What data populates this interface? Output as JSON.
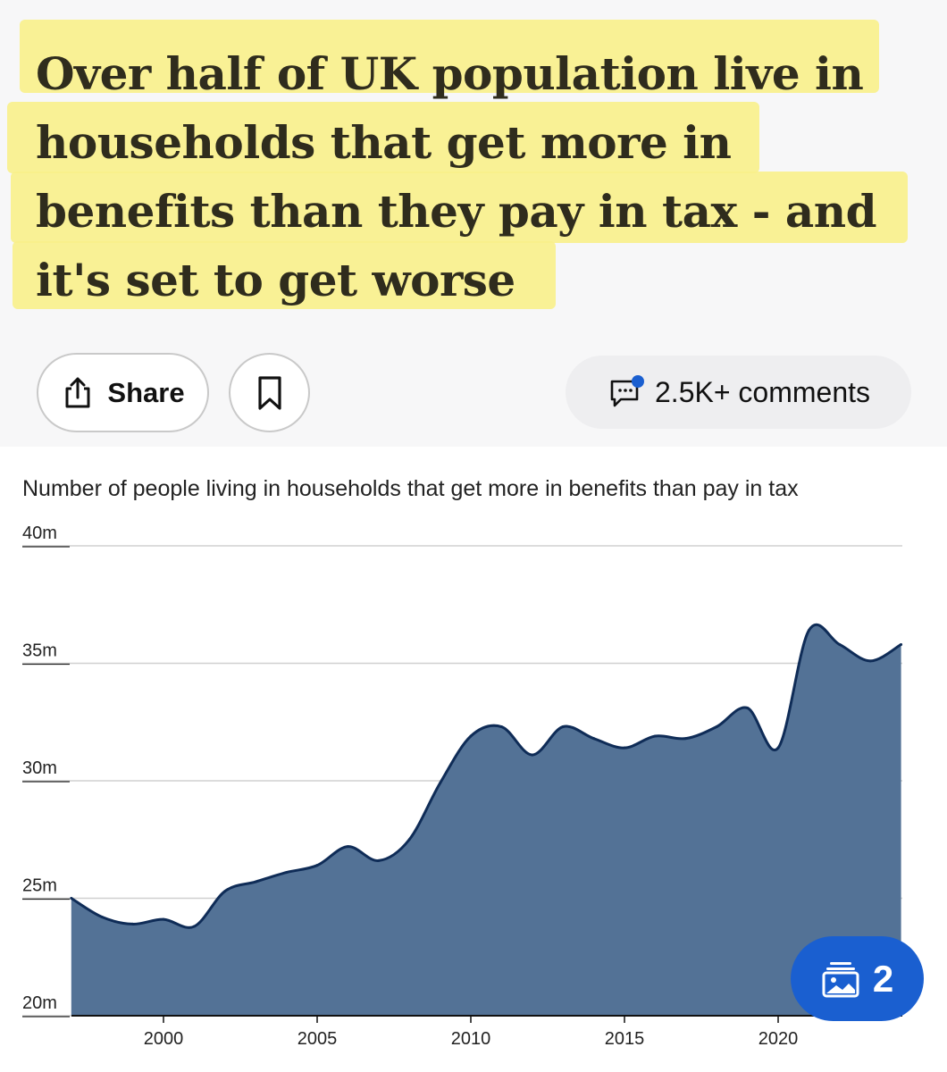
{
  "article": {
    "headline": "Over half of UK population live in households that get more in benefits than they pay in tax - and it's set to get worse"
  },
  "actions": {
    "share_label": "Share",
    "comments_label": "2.5K+ comments"
  },
  "gallery": {
    "count": "2"
  },
  "colors": {
    "highlight": "#f8f08a",
    "headline": "#2f2c1d",
    "area_fill": "#537296",
    "area_line": "#0f2c57",
    "accent": "#1a5fd0"
  },
  "icons": [
    "share-icon",
    "bookmark-icon",
    "comment-icon",
    "gallery-icon"
  ],
  "chart_data": {
    "type": "area",
    "title": "Number of people living in households that get more in benefits than pay in tax",
    "xlabel": "",
    "ylabel": "",
    "ylim": [
      20,
      40
    ],
    "xlim": [
      1997,
      2024
    ],
    "y_ticks": [
      {
        "value": 40,
        "label": "40m"
      },
      {
        "value": 35,
        "label": "35m"
      },
      {
        "value": 30,
        "label": "30m"
      },
      {
        "value": 25,
        "label": "25m"
      },
      {
        "value": 20,
        "label": "20m"
      }
    ],
    "x_ticks": [
      {
        "value": 2000,
        "label": "2000"
      },
      {
        "value": 2005,
        "label": "2005"
      },
      {
        "value": 2010,
        "label": "2010"
      },
      {
        "value": 2015,
        "label": "2015"
      },
      {
        "value": 2020,
        "label": "2020"
      }
    ],
    "grid": true,
    "series": [
      {
        "x": [
          1997,
          1998,
          1999,
          2000,
          2001,
          2002,
          2003,
          2004,
          2005,
          2006,
          2007,
          2008,
          2009,
          2010,
          2011,
          2012,
          2013,
          2014,
          2015,
          2016,
          2017,
          2018,
          2019,
          2020,
          2021,
          2022,
          2023,
          2024
        ],
        "values": [
          25.0,
          24.2,
          23.9,
          24.1,
          23.8,
          25.3,
          25.7,
          26.1,
          26.4,
          27.2,
          26.6,
          27.5,
          29.9,
          31.9,
          32.3,
          31.1,
          32.3,
          31.8,
          31.4,
          31.9,
          31.8,
          32.3,
          33.1,
          31.4,
          36.4,
          35.8,
          35.1,
          35.8
        ]
      }
    ]
  }
}
